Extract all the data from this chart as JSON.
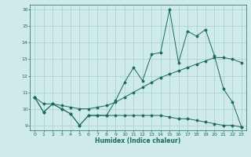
{
  "xlabel": "Humidex (Indice chaleur)",
  "bg_color": "#ceeaea",
  "grid_color": "#aacccc",
  "line_color": "#1a6b5a",
  "xlim": [
    -0.5,
    23.5
  ],
  "ylim": [
    8.7,
    16.3
  ],
  "xticks": [
    0,
    1,
    2,
    3,
    4,
    5,
    6,
    7,
    8,
    9,
    10,
    11,
    12,
    13,
    14,
    15,
    16,
    17,
    18,
    19,
    20,
    21,
    22,
    23
  ],
  "yticks": [
    9,
    10,
    11,
    12,
    13,
    14,
    15,
    16
  ],
  "series1_x": [
    0,
    1,
    2,
    3,
    4,
    5,
    6,
    7,
    8,
    9,
    10,
    11,
    12,
    13,
    14,
    15,
    16,
    17,
    18,
    19,
    20,
    21,
    22,
    23
  ],
  "series1_y": [
    10.7,
    9.8,
    10.3,
    10.0,
    9.7,
    9.0,
    9.6,
    9.6,
    9.6,
    10.5,
    11.6,
    12.5,
    11.7,
    13.3,
    13.4,
    16.0,
    12.8,
    14.7,
    14.4,
    14.8,
    13.2,
    11.2,
    10.4,
    8.9
  ],
  "series2_x": [
    0,
    1,
    2,
    3,
    4,
    5,
    6,
    7,
    8,
    9,
    10,
    11,
    12,
    13,
    14,
    15,
    16,
    17,
    18,
    19,
    20,
    21,
    22,
    23
  ],
  "series2_y": [
    10.7,
    10.3,
    10.3,
    10.2,
    10.1,
    10.0,
    10.0,
    10.1,
    10.2,
    10.4,
    10.7,
    11.0,
    11.3,
    11.6,
    11.9,
    12.1,
    12.3,
    12.5,
    12.7,
    12.9,
    13.1,
    13.1,
    13.0,
    12.8
  ],
  "series3_x": [
    0,
    1,
    2,
    3,
    4,
    5,
    6,
    7,
    8,
    9,
    10,
    11,
    12,
    13,
    14,
    15,
    16,
    17,
    18,
    19,
    20,
    21,
    22,
    23
  ],
  "series3_y": [
    10.7,
    9.8,
    10.3,
    10.0,
    9.7,
    9.0,
    9.6,
    9.6,
    9.6,
    9.6,
    9.6,
    9.6,
    9.6,
    9.6,
    9.6,
    9.5,
    9.4,
    9.4,
    9.3,
    9.2,
    9.1,
    9.0,
    9.0,
    8.9
  ]
}
